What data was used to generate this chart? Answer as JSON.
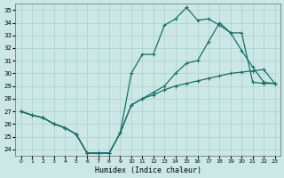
{
  "xlabel": "Humidex (Indice chaleur)",
  "bg_color": "#cce8e6",
  "grid_color": "#aacfcc",
  "line_color": "#1a6e68",
  "xlim": [
    -0.5,
    23.5
  ],
  "ylim": [
    23.5,
    35.5
  ],
  "xticks": [
    0,
    1,
    2,
    3,
    4,
    5,
    6,
    7,
    8,
    9,
    10,
    11,
    12,
    13,
    14,
    15,
    16,
    17,
    18,
    19,
    20,
    21,
    22,
    23
  ],
  "yticks": [
    24,
    25,
    26,
    27,
    28,
    29,
    30,
    31,
    32,
    33,
    34,
    35
  ],
  "line1_x": [
    0,
    1,
    2,
    3,
    4,
    5,
    6,
    7,
    8,
    9,
    10,
    11,
    12,
    13,
    14,
    15,
    16,
    17,
    18,
    19,
    20,
    21,
    22,
    23
  ],
  "line1_y": [
    27.0,
    26.7,
    26.5,
    26.0,
    25.7,
    25.2,
    23.7,
    23.7,
    23.7,
    25.3,
    30.0,
    31.5,
    31.5,
    33.8,
    34.3,
    35.2,
    34.2,
    34.3,
    33.8,
    33.2,
    31.8,
    30.5,
    29.3,
    29.2
  ],
  "line2_x": [
    0,
    1,
    2,
    3,
    4,
    5,
    6,
    7,
    8,
    9,
    10,
    11,
    12,
    13,
    14,
    15,
    16,
    17,
    18,
    19,
    20,
    21,
    22,
    23
  ],
  "line2_y": [
    27.0,
    26.7,
    26.5,
    26.0,
    25.7,
    25.2,
    23.7,
    23.7,
    23.7,
    25.3,
    27.5,
    28.0,
    28.3,
    28.7,
    29.0,
    29.2,
    29.4,
    29.6,
    29.8,
    30.0,
    30.1,
    30.2,
    30.3,
    29.2
  ],
  "line3_x": [
    0,
    1,
    2,
    3,
    4,
    5,
    6,
    7,
    8,
    9,
    10,
    11,
    12,
    13,
    14,
    15,
    16,
    17,
    18,
    19,
    20,
    21,
    22,
    23
  ],
  "line3_y": [
    27.0,
    26.7,
    26.5,
    26.0,
    25.7,
    25.2,
    23.7,
    23.7,
    23.7,
    25.3,
    27.5,
    28.0,
    28.5,
    29.0,
    30.0,
    30.8,
    31.0,
    32.5,
    34.0,
    33.2,
    33.2,
    29.3,
    29.2,
    29.2
  ]
}
